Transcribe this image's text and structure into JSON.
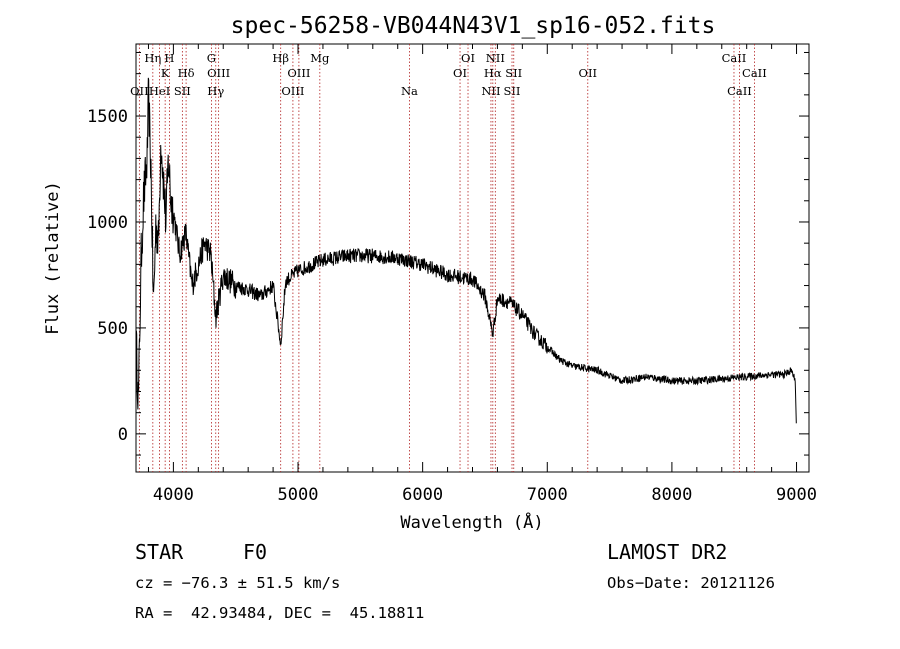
{
  "chart_data": {
    "type": "line",
    "title": "spec-56258-VB044N43V1_sp16-052.fits",
    "xlabel": "Wavelength (Å)",
    "ylabel": "Flux (relative)",
    "xlim": [
      3700,
      9100
    ],
    "ylim": [
      -180,
      1840
    ],
    "xticks": [
      4000,
      5000,
      6000,
      7000,
      8000,
      9000
    ],
    "yticks": [
      0,
      500,
      1000,
      1500
    ],
    "grid": false,
    "spectrum_anchors": {
      "x": [
        3700,
        3720,
        3740,
        3760,
        3790,
        3800,
        3820,
        3840,
        3860,
        3880,
        3900,
        3920,
        3940,
        3960,
        3980,
        4000,
        4050,
        4100,
        4150,
        4200,
        4250,
        4300,
        4340,
        4400,
        4500,
        4600,
        4700,
        4800,
        4861,
        4900,
        5000,
        5200,
        5400,
        5600,
        5800,
        6000,
        6200,
        6400,
        6500,
        6563,
        6600,
        6700,
        6800,
        6900,
        7000,
        7100,
        7200,
        7400,
        7600,
        7800,
        8000,
        8200,
        8400,
        8600,
        8800,
        8900,
        8960,
        8990,
        9000
      ],
      "y": [
        450,
        150,
        800,
        1100,
        1300,
        1600,
        1250,
        600,
        1000,
        900,
        1400,
        1200,
        1000,
        1300,
        1100,
        1050,
        850,
        950,
        700,
        800,
        900,
        850,
        550,
        750,
        700,
        680,
        650,
        700,
        420,
        720,
        770,
        820,
        840,
        840,
        830,
        800,
        750,
        730,
        650,
        470,
        640,
        620,
        560,
        470,
        410,
        350,
        320,
        300,
        250,
        270,
        250,
        250,
        260,
        270,
        280,
        280,
        300,
        250,
        0
      ],
      "noise_amplitude": 70
    },
    "lines": [
      {
        "label": "OII",
        "x": 3727,
        "row": 3
      },
      {
        "label": "Hη",
        "x": 3835,
        "row": 1
      },
      {
        "label": "HeI",
        "x": 3889,
        "row": 3
      },
      {
        "label": "K",
        "x": 3934,
        "row": 2
      },
      {
        "label": "H",
        "x": 3968,
        "row": 1
      },
      {
        "label": "SII",
        "x": 4072,
        "row": 3
      },
      {
        "label": "Hδ",
        "x": 4102,
        "row": 2
      },
      {
        "label": "G",
        "x": 4305,
        "row": 1
      },
      {
        "label": "Hγ",
        "x": 4340,
        "row": 3
      },
      {
        "label": "OIII",
        "x": 4363,
        "row": 2
      },
      {
        "label": "Hβ",
        "x": 4861,
        "row": 1
      },
      {
        "label": "OIII",
        "x": 4959,
        "row": 3
      },
      {
        "label": "OIII",
        "x": 5007,
        "row": 2
      },
      {
        "label": "Mg",
        "x": 5175,
        "row": 1
      },
      {
        "label": "Na",
        "x": 5894,
        "row": 3
      },
      {
        "label": "OI",
        "x": 6300,
        "row": 2
      },
      {
        "label": "OI",
        "x": 6364,
        "row": 1
      },
      {
        "label": "NII",
        "x": 6548,
        "row": 3
      },
      {
        "label": "Hα",
        "x": 6563,
        "row": 2
      },
      {
        "label": "NII",
        "x": 6583,
        "row": 1
      },
      {
        "label": "SII",
        "x": 6717,
        "row": 3
      },
      {
        "label": "SII",
        "x": 6731,
        "row": 2
      },
      {
        "label": "OII",
        "x": 7325,
        "row": 2
      },
      {
        "label": "CaII",
        "x": 8498,
        "row": 1
      },
      {
        "label": "CaII",
        "x": 8542,
        "row": 3
      },
      {
        "label": "CaII",
        "x": 8662,
        "row": 2
      }
    ]
  },
  "info": {
    "class": "STAR",
    "subclass": "F0",
    "survey": "LAMOST DR2",
    "cz": "cz = −76.3 ± 51.5 km/s",
    "obs_date": "Obs−Date: 20121126",
    "coords": "RA =  42.93484, DEC =  45.18811"
  }
}
